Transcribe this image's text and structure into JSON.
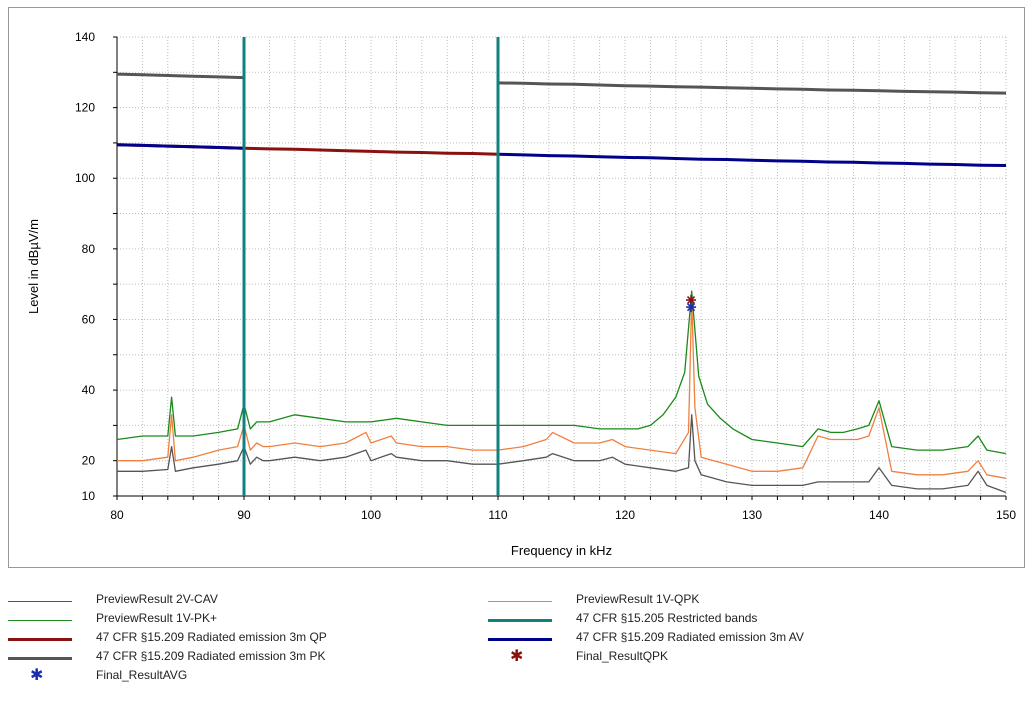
{
  "chart_data": {
    "type": "line",
    "xlabel": "Frequency in kHz",
    "ylabel": "Level in dBµV/m",
    "xlim": [
      80,
      150
    ],
    "ylim": [
      10,
      140
    ],
    "x_ticks": [
      80,
      90,
      100,
      110,
      120,
      130,
      140,
      150
    ],
    "y_ticks": [
      10,
      20,
      40,
      60,
      80,
      100,
      120,
      140
    ],
    "grid": true,
    "legend_position": "bottom",
    "series": [
      {
        "name": "PreviewResult 2V-CAV",
        "color": "#555555",
        "x": [
          80,
          82,
          84,
          84.3,
          84.6,
          86,
          88,
          89.5,
          90,
          90.5,
          91,
          91.5,
          92,
          94,
          96,
          98,
          99.6,
          100,
          101.6,
          102,
          104,
          106,
          108,
          110,
          112,
          113.8,
          114.3,
          116,
          118,
          119,
          120,
          122,
          124,
          125,
          125.25,
          125.5,
          126,
          128,
          130,
          132,
          134,
          135.2,
          136.2,
          137.2,
          138.3,
          139.2,
          140,
          141,
          143,
          145,
          147,
          147.8,
          148.5,
          150
        ],
        "y": [
          17,
          17,
          17.5,
          24,
          17,
          18,
          19,
          20,
          24,
          19,
          21,
          20,
          20,
          21,
          20,
          21,
          23,
          20,
          22,
          21,
          20,
          20,
          19,
          19,
          20,
          21,
          22,
          20,
          20,
          21,
          19,
          18,
          17,
          18,
          33,
          20,
          16,
          14,
          13,
          13,
          13,
          14,
          14,
          14,
          14,
          14,
          18,
          13,
          12,
          12,
          13,
          17,
          13,
          11
        ]
      },
      {
        "name": "PreviewResult 1V-QPK",
        "color": "#f08040",
        "x": [
          80,
          82,
          84,
          84.3,
          84.6,
          86,
          88,
          89.5,
          90,
          90.5,
          91,
          91.5,
          92,
          94,
          96,
          98,
          99.6,
          100,
          101.6,
          102,
          104,
          106,
          108,
          110,
          112,
          113.8,
          114.3,
          116,
          118,
          119,
          120,
          122,
          124,
          125,
          125.25,
          125.5,
          126,
          128,
          130,
          132,
          134,
          135.2,
          136.2,
          137.2,
          138.3,
          139.2,
          140,
          141,
          143,
          145,
          147,
          147.8,
          148.5,
          150
        ],
        "y": [
          20,
          20,
          21,
          33,
          20,
          21,
          23,
          24,
          30,
          23,
          25,
          24,
          24,
          25,
          24,
          25,
          28,
          25,
          27,
          25,
          24,
          24,
          23,
          23,
          24,
          26,
          28,
          25,
          25,
          26,
          24,
          23,
          22,
          28,
          66,
          35,
          21,
          19,
          17,
          17,
          18,
          27,
          26,
          26,
          26,
          27,
          35,
          17,
          16,
          16,
          17,
          20,
          16,
          15
        ]
      },
      {
        "name": "PreviewResult 1V-PK+",
        "color": "#1a8a1a",
        "x": [
          80,
          82,
          84,
          84.3,
          84.6,
          86,
          88,
          89.5,
          90,
          90.5,
          91,
          92,
          94,
          96,
          98,
          100,
          102,
          104,
          106,
          108,
          110,
          112,
          114,
          116,
          118,
          120,
          121,
          122,
          123,
          124,
          124.7,
          125.25,
          125.8,
          126.5,
          127.5,
          128.5,
          130,
          132,
          134,
          135.2,
          136.2,
          137.2,
          138.3,
          139.2,
          140,
          141,
          143,
          145,
          147,
          147.8,
          148.5,
          150
        ],
        "y": [
          26,
          27,
          27,
          38,
          27,
          27,
          28,
          29,
          36,
          29,
          31,
          31,
          33,
          32,
          31,
          31,
          32,
          31,
          30,
          30,
          30,
          30,
          30,
          30,
          29,
          29,
          29,
          30,
          33,
          38,
          45,
          68,
          44,
          36,
          32,
          29,
          26,
          25,
          24,
          29,
          28,
          28,
          29,
          30,
          37,
          24,
          23,
          23,
          24,
          27,
          23,
          22
        ]
      },
      {
        "name": "47 CFR §15.209 Radiated emission 3m PK",
        "color": "#555555",
        "x": [
          80,
          82,
          84,
          86,
          88,
          90,
          null,
          110,
          112,
          114,
          116,
          118,
          120,
          122,
          124,
          126,
          128,
          130,
          132,
          134,
          136,
          138,
          140,
          142,
          144,
          146,
          148,
          150
        ],
        "y": [
          129.5,
          129.3,
          129.1,
          128.9,
          128.7,
          128.5,
          null,
          127.0,
          126.9,
          126.7,
          126.6,
          126.4,
          126.2,
          126.1,
          125.9,
          125.8,
          125.6,
          125.5,
          125.3,
          125.2,
          125.0,
          124.9,
          124.8,
          124.6,
          124.5,
          124.4,
          124.2,
          124.1
        ]
      },
      {
        "name": "47 CFR §15.209 Radiated emission 3m QP",
        "color": "#8b1010",
        "x": [
          80,
          82,
          84,
          86,
          88,
          90,
          92,
          94,
          96,
          98,
          100,
          102,
          104,
          106,
          108,
          110
        ],
        "y": [
          109.5,
          109.3,
          109.1,
          108.9,
          108.7,
          108.5,
          108.3,
          108.2,
          108.0,
          107.8,
          107.6,
          107.4,
          107.3,
          107.1,
          107.0,
          106.8
        ]
      },
      {
        "name": "47 CFR §15.209 Radiated emission 3m AV",
        "color": "#00008b",
        "x": [
          80,
          82,
          84,
          86,
          88,
          90,
          null,
          110,
          112,
          114,
          116,
          118,
          120,
          122,
          124,
          126,
          128,
          130,
          132,
          134,
          136,
          138,
          140,
          142,
          144,
          146,
          148,
          150
        ],
        "y": [
          109.5,
          109.3,
          109.1,
          108.9,
          108.7,
          108.5,
          null,
          106.8,
          106.6,
          106.4,
          106.3,
          106.1,
          105.9,
          105.8,
          105.6,
          105.4,
          105.3,
          105.1,
          104.9,
          104.8,
          104.6,
          104.5,
          104.3,
          104.2,
          104.0,
          103.9,
          103.7,
          103.6
        ]
      }
    ],
    "restricted_bands": {
      "name": "47 CFR §15.205 Restricted bands",
      "color": "#108080",
      "x": [
        90,
        110
      ]
    },
    "markers": [
      {
        "name": "Final_ResultQPK",
        "color": "#8b1010",
        "x": 125.2,
        "y": 65.5
      },
      {
        "name": "Final_ResultAVG",
        "color": "#1a2fb0",
        "x": 125.2,
        "y": 63.5
      }
    ]
  },
  "legend": [
    {
      "label": "PreviewResult 2V-CAV",
      "color": "#555555",
      "kind": "thin"
    },
    {
      "label": "PreviewResult 1V-QPK",
      "color": "#f08040",
      "kind": "thin"
    },
    {
      "label": "PreviewResult 1V-PK+",
      "color": "#1a8a1a",
      "kind": "thin"
    },
    {
      "label": "47 CFR §15.205 Restricted bands",
      "color": "#108080",
      "kind": "thick"
    },
    {
      "label": "47 CFR §15.209 Radiated emission 3m QP",
      "color": "#8b1010",
      "kind": "thick"
    },
    {
      "label": "47 CFR §15.209 Radiated emission 3m AV",
      "color": "#00008b",
      "kind": "thick"
    },
    {
      "label": "47 CFR §15.209 Radiated emission 3m PK",
      "color": "#555555",
      "kind": "thick"
    },
    {
      "label": "Final_ResultQPK",
      "color": "#8b1010",
      "kind": "star"
    },
    {
      "label": "Final_ResultAVG",
      "color": "#1a2fb0",
      "kind": "star"
    }
  ]
}
